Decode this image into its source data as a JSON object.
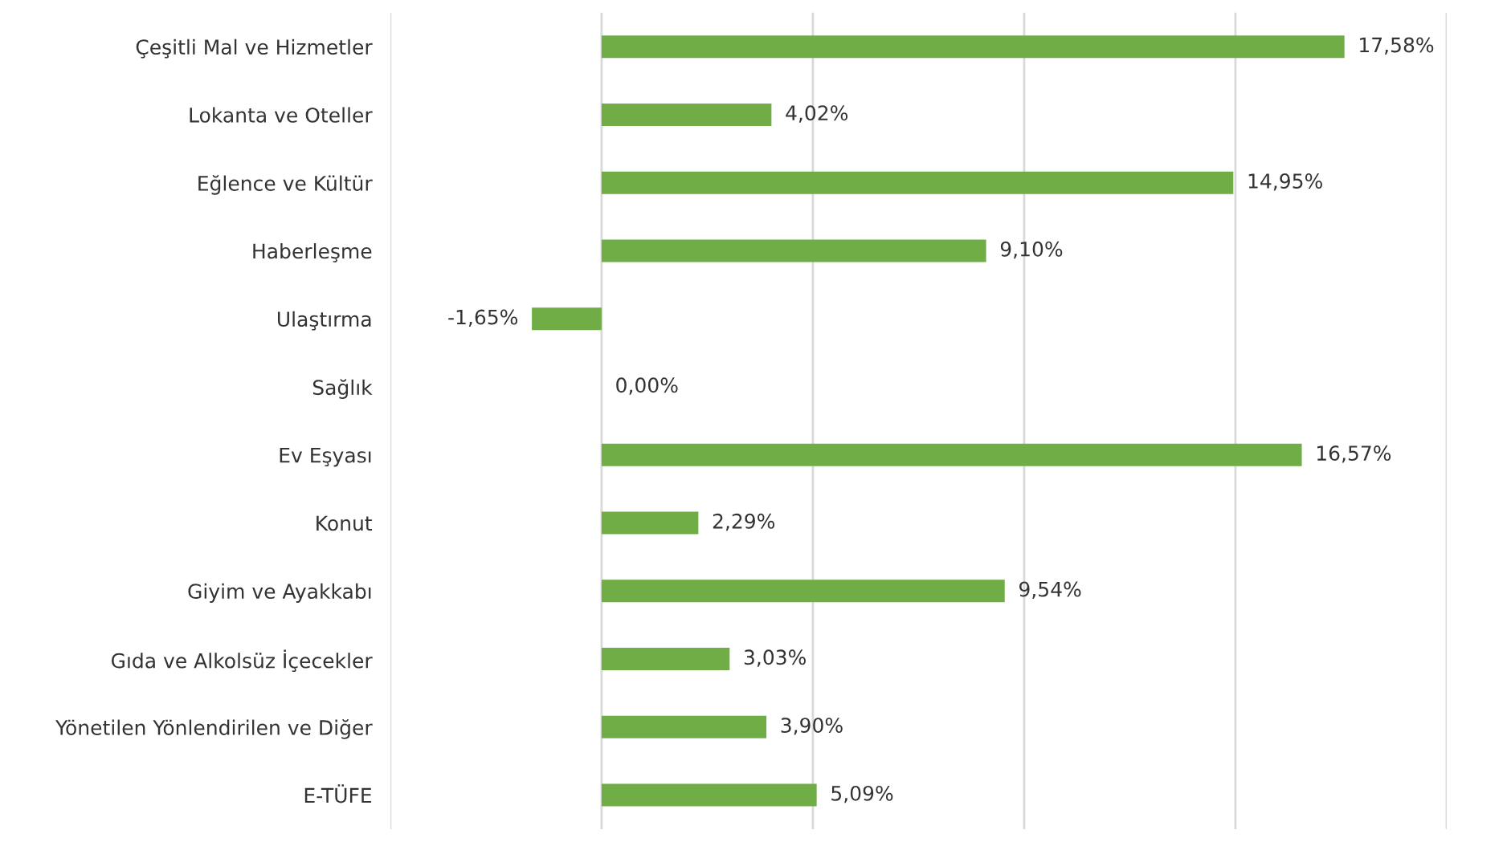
{
  "chart_data": {
    "type": "bar",
    "orientation": "horizontal",
    "categories": [
      "Çeşitli Mal ve Hizmetler",
      "Lokanta ve Oteller",
      "Eğlence ve Kültür",
      "Haberleşme",
      "Ulaştırma",
      "Sağlık",
      "Ev Eşyası",
      "Konut",
      "Giyim ve Ayakkabı",
      "Gıda ve Alkolsüz İçecekler",
      "Yönetilen Yönlendirilen ve Diğer",
      "E-TÜFE"
    ],
    "values": [
      17.58,
      4.02,
      14.95,
      9.1,
      -1.65,
      0.0,
      16.57,
      2.29,
      9.54,
      3.03,
      3.9,
      5.09
    ],
    "value_labels": [
      "17,58%",
      "4,02%",
      "14,95%",
      "9,10%",
      "-1,65%",
      "0,00%",
      "16,57%",
      "2,29%",
      "9,54%",
      "3,03%",
      "3,90%",
      "5,09%"
    ],
    "color": "#70ad47",
    "xlim": [
      -5,
      20
    ],
    "xticks": [
      {
        "value": -5,
        "label": null
      },
      {
        "value": 0,
        "label": null
      },
      {
        "value": 5,
        "label": null
      },
      {
        "value": 10,
        "label": null
      },
      {
        "value": 15,
        "label": null
      },
      {
        "value": 20,
        "label": null
      }
    ],
    "grid": "x",
    "tick_labels": "y"
  }
}
